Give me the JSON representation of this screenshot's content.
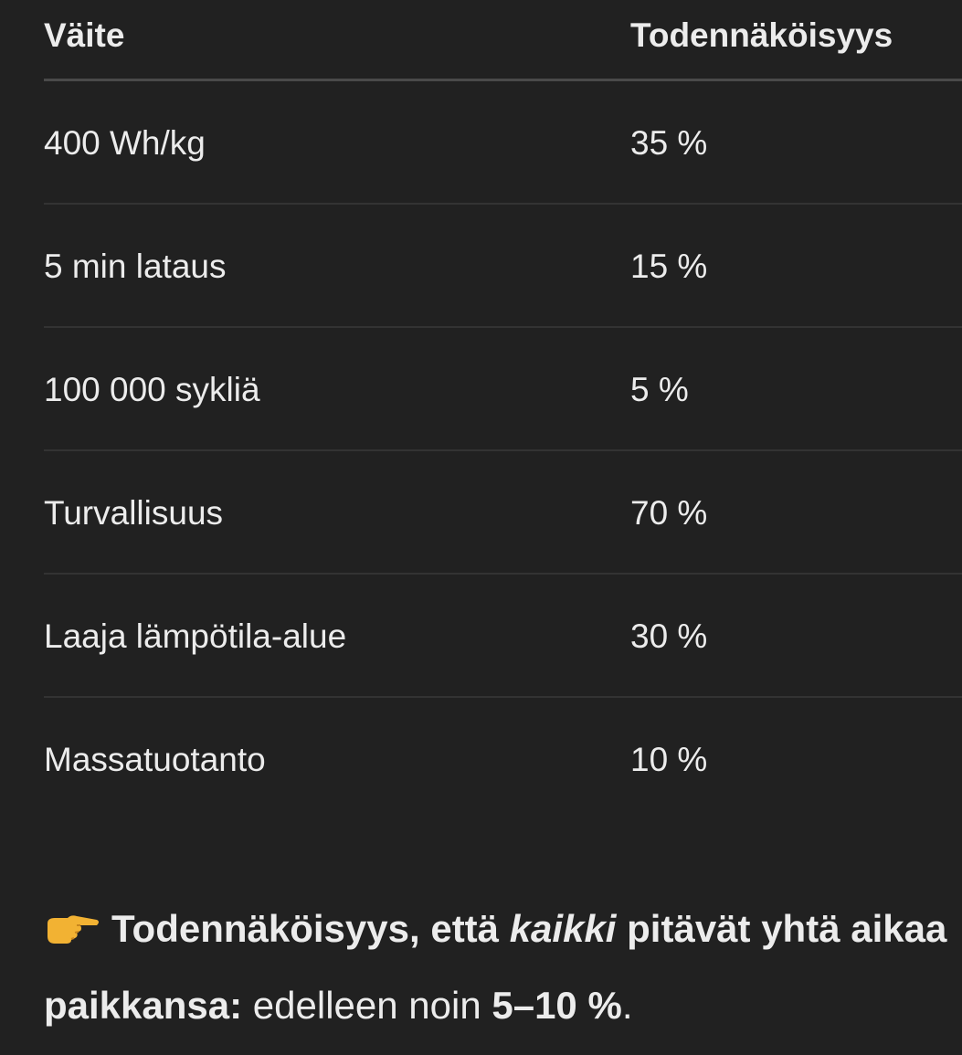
{
  "table": {
    "headers": [
      "Väite",
      "Todennäköisyys"
    ],
    "rows": [
      [
        "400 Wh/kg",
        "35 %"
      ],
      [
        "5 min lataus",
        "15 %"
      ],
      [
        "100 000 sykliä",
        "5 %"
      ],
      [
        "Turvallisuus",
        "70 %"
      ],
      [
        "Laaja lämpötila-alue",
        "30 %"
      ],
      [
        "Massatuotanto",
        "10 %"
      ]
    ]
  },
  "summary": {
    "icon": "backhand-index-pointing-right-emoji",
    "bold_lead": "Todennäköisyys, että ",
    "italic": "kaikki",
    "bold_tail": " pitävät yhtä aikaa paikkansa:",
    "normal": " edelleen noin ",
    "bold_value": "5–10 %",
    "end": "."
  },
  "colors": {
    "background": "#212121",
    "text": "#ececec"
  }
}
